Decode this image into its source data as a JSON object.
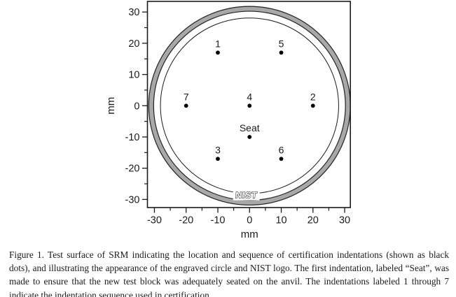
{
  "figure": {
    "caption": "Figure 1.  Test surface of SRM indicating the location and sequence of certification indentations (shown as black dots), and illustrating the appearance of the engraved circle and NIST logo.  The first indentation, labeled “Seat”, was made to ensure that the new test block was adequately seated on the anvil.  The indentations labeled 1 through 7 indicate the indentation sequence used in certification."
  },
  "chart_data": {
    "type": "scatter",
    "title": "",
    "xlabel": "mm",
    "ylabel": "mm",
    "xlim": [
      -32.2,
      31.8
    ],
    "ylim": [
      -32.6,
      33.4
    ],
    "x_ticks": [
      -30,
      -20,
      -10,
      0,
      10,
      20,
      30
    ],
    "y_ticks": [
      -30,
      -20,
      -10,
      0,
      10,
      20,
      30
    ],
    "minor_ticks": [
      -25,
      -15,
      -5,
      5,
      15,
      25
    ],
    "grid": false,
    "legend": "none",
    "points": [
      {
        "label": "1",
        "x": -10,
        "y": 17
      },
      {
        "label": "2",
        "x": 20,
        "y": 0
      },
      {
        "label": "3",
        "x": -10,
        "y": -17
      },
      {
        "label": "4",
        "x": 0,
        "y": 0
      },
      {
        "label": "5",
        "x": 10,
        "y": 17
      },
      {
        "label": "6",
        "x": 10,
        "y": -17
      },
      {
        "label": "7",
        "x": -20,
        "y": 0
      },
      {
        "label": "Seat",
        "x": 0,
        "y": -10
      }
    ],
    "engraved_ring": {
      "outer_radius_mm": 31.8,
      "inner_radius_mm": 30.25,
      "fill": "#a8a8a8",
      "stroke": "#222222"
    },
    "engraved_circle_radius_mm": 28.1,
    "logo": {
      "text": "NIST",
      "x_mm": -1,
      "y_mm": -28.6
    },
    "point_color": "#000000",
    "frame_color": "#1a1a1a",
    "background": "#ffffff"
  }
}
